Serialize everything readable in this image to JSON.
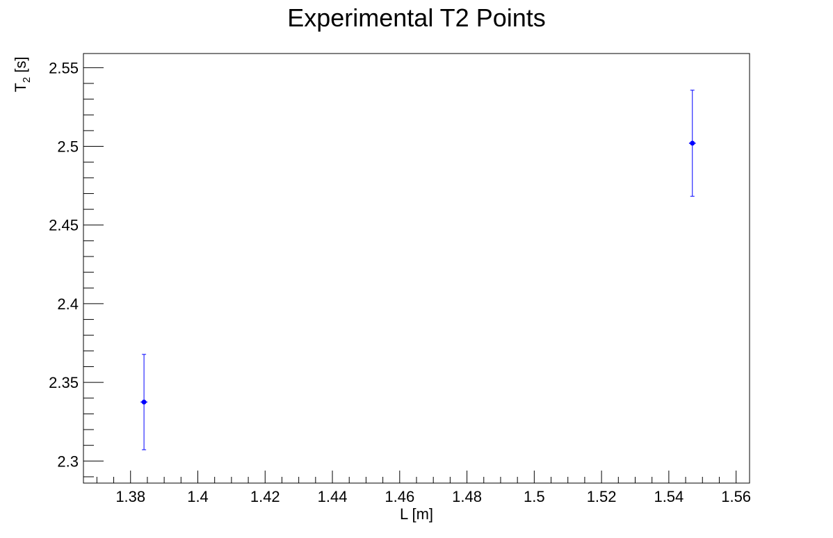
{
  "chart_data": {
    "type": "scatter",
    "title": "Experimental T2 Points",
    "xlabel": "L [m]",
    "ylabel": {
      "main": "T",
      "subscript": "2",
      "unit": " [s]"
    },
    "xlim": [
      1.366,
      1.564
    ],
    "ylim": [
      2.286,
      2.559
    ],
    "x_ticks": [
      {
        "value": 1.38,
        "label": "1.38"
      },
      {
        "value": 1.4,
        "label": "1.4"
      },
      {
        "value": 1.42,
        "label": "1.42"
      },
      {
        "value": 1.44,
        "label": "1.44"
      },
      {
        "value": 1.46,
        "label": "1.46"
      },
      {
        "value": 1.48,
        "label": "1.48"
      },
      {
        "value": 1.5,
        "label": "1.5"
      },
      {
        "value": 1.52,
        "label": "1.52"
      },
      {
        "value": 1.54,
        "label": "1.54"
      },
      {
        "value": 1.56,
        "label": "1.56"
      }
    ],
    "y_ticks": [
      {
        "value": 2.3,
        "label": "2.3"
      },
      {
        "value": 2.35,
        "label": "2.35"
      },
      {
        "value": 2.4,
        "label": "2.4"
      },
      {
        "value": 2.45,
        "label": "2.45"
      },
      {
        "value": 2.5,
        "label": "2.5"
      },
      {
        "value": 2.55,
        "label": "2.55"
      }
    ],
    "x_minor_step": 0.005,
    "y_minor_step": 0.01,
    "grid": false,
    "series": [
      {
        "color": "#0000ff",
        "points": [
          {
            "x": 1.384,
            "y": 2.3375,
            "yerr": 0.0303,
            "xerr": 0.001
          },
          {
            "x": 1.547,
            "y": 2.502,
            "yerr": 0.0337,
            "xerr": 0.001
          }
        ]
      }
    ]
  }
}
